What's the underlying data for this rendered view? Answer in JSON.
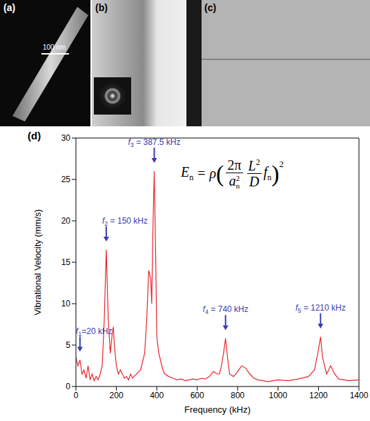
{
  "panels": [
    {
      "label": "(a)",
      "scale_bar": "100 nm"
    },
    {
      "label": "(b)"
    },
    {
      "label": "(c)"
    }
  ],
  "chart_data": {
    "type": "line",
    "panel_label": "(d)",
    "x_label": "Frequency (kHz)",
    "y_label": "Vibrational Velocity (mm/s)",
    "x": [
      0,
      10,
      20,
      30,
      40,
      50,
      60,
      70,
      80,
      90,
      100,
      110,
      120,
      130,
      140,
      150,
      160,
      170,
      180,
      185,
      190,
      200,
      210,
      220,
      230,
      240,
      250,
      260,
      270,
      280,
      290,
      300,
      310,
      320,
      330,
      340,
      350,
      360,
      370,
      375,
      380,
      387.5,
      395,
      400,
      410,
      420,
      430,
      440,
      460,
      480,
      500,
      520,
      540,
      560,
      580,
      600,
      620,
      640,
      660,
      680,
      700,
      710,
      720,
      730,
      740,
      750,
      760,
      780,
      800,
      820,
      840,
      860,
      880,
      900,
      950,
      1000,
      1050,
      1100,
      1150,
      1180,
      1200,
      1210,
      1220,
      1240,
      1260,
      1280,
      1300,
      1350,
      1400
    ],
    "values": [
      3.5,
      2.5,
      3.2,
      1.5,
      2,
      1,
      2.5,
      0.8,
      1.5,
      0.7,
      1.2,
      0.8,
      1.5,
      2.5,
      8,
      16.5,
      8,
      4,
      6.5,
      7.2,
      5,
      2.5,
      1.5,
      2,
      1.5,
      1,
      1.2,
      0.8,
      1.5,
      1,
      1.3,
      1.5,
      1.8,
      2,
      3,
      4,
      8,
      14,
      13,
      10,
      18,
      26,
      15,
      6,
      4,
      3,
      2,
      1.5,
      1.2,
      1,
      0.8,
      0.9,
      0.7,
      0.8,
      0.9,
      0.8,
      1,
      0.9,
      1.2,
      1.8,
      1.5,
      1.5,
      2.5,
      4,
      5.8,
      3.5,
      1.5,
      1.2,
      1.8,
      2.5,
      2.2,
      1.5,
      1,
      0.8,
      0.6,
      0.8,
      0.7,
      0.9,
      1.2,
      2,
      4.5,
      6,
      3.5,
      1.5,
      2.5,
      1.5,
      0.9,
      0.7,
      0.8
    ],
    "color": "#e8242b",
    "xlim": [
      0,
      1400
    ],
    "xticks": [
      0,
      200,
      400,
      600,
      800,
      1000,
      1200,
      1400
    ],
    "ylim": [
      0,
      30
    ],
    "yticks": [
      0,
      5,
      10,
      15,
      20,
      25,
      30
    ],
    "grid": false,
    "annotations": [
      {
        "text": "f1=20 kHz",
        "x": 20,
        "y": 4.2,
        "color": "#3b3bb0"
      },
      {
        "text": "f2 = 150 kHz",
        "x": 150,
        "y": 17.5,
        "color": "#3b3bb0"
      },
      {
        "text": "f3 = 387.5 kHz",
        "x": 387.5,
        "y": 27,
        "color": "#3b3bb0"
      },
      {
        "text": "f4 = 740 kHz",
        "x": 740,
        "y": 6.8,
        "color": "#3b3bb0"
      },
      {
        "text": "f5 = 1210 kHz",
        "x": 1210,
        "y": 7,
        "color": "#3b3bb0"
      }
    ],
    "equation": {
      "lhs": [
        "E",
        "n"
      ],
      "factor": "ρ",
      "fraction1": {
        "num": "2π",
        "den": [
          "a",
          "n",
          "2"
        ]
      },
      "fraction2": {
        "num": [
          "L",
          "2"
        ],
        "den": "D"
      },
      "term": [
        "f",
        "n"
      ],
      "power": "2"
    }
  }
}
